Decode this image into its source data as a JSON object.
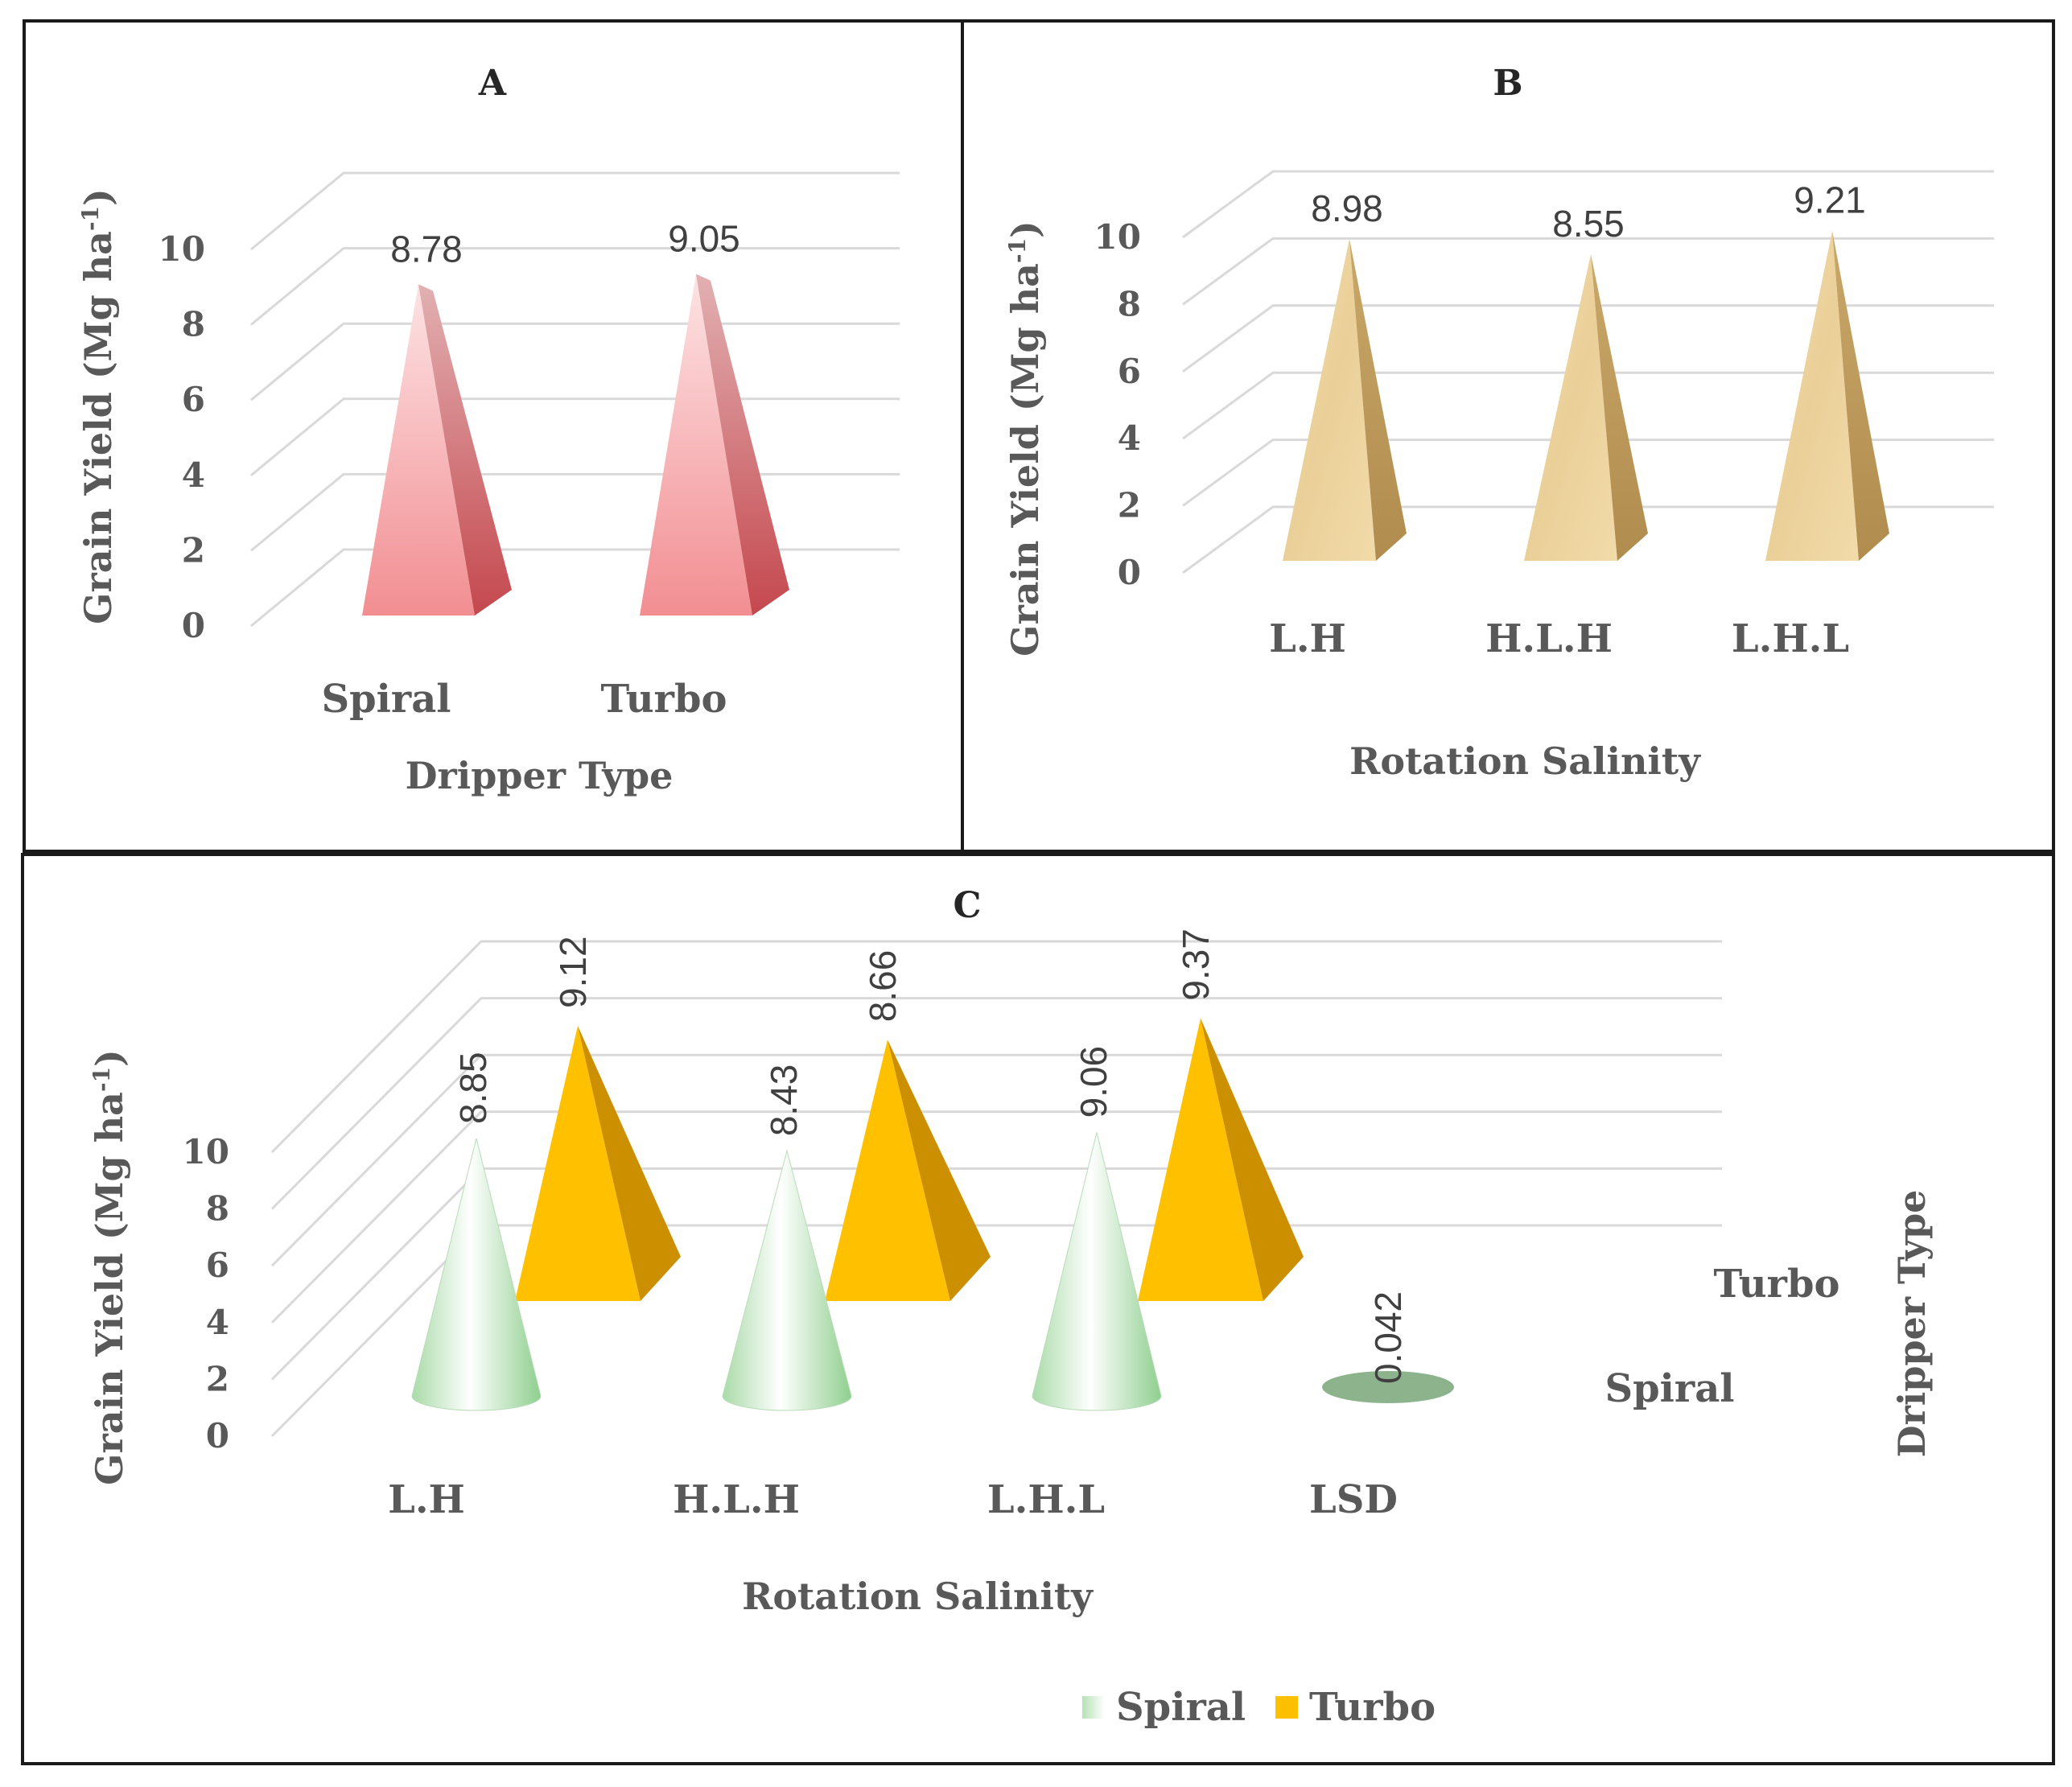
{
  "chart_data": [
    {
      "panel": "A",
      "type": "bar",
      "shape": "pyramid",
      "title": "A",
      "ylabel": "Grain Yield (Mg ha",
      "ylabel_sup": "-1",
      "ylabel_close": ")",
      "xlabel": "Dripper Type",
      "yticks": [
        "0",
        "2",
        "4",
        "6",
        "8",
        "10"
      ],
      "ylim": [
        0,
        10
      ],
      "categories": [
        "Spiral",
        "Turbo"
      ],
      "values": [
        8.78,
        9.05
      ],
      "value_labels": [
        "8.78",
        "9.05"
      ],
      "color": "#f4a0a4"
    },
    {
      "panel": "B",
      "type": "bar",
      "shape": "pyramid",
      "title": "B",
      "ylabel": "Grain Yield (Mg ha",
      "ylabel_sup": "-1",
      "ylabel_close": ")",
      "xlabel": "Rotation Salinity",
      "yticks": [
        "0",
        "2",
        "4",
        "6",
        "8",
        "10"
      ],
      "ylim": [
        0,
        10
      ],
      "categories": [
        "L.H",
        "H.L.H",
        "L.H.L"
      ],
      "values": [
        8.98,
        8.55,
        9.21
      ],
      "value_labels": [
        "8.98",
        "8.55",
        "9.21"
      ],
      "color": "#e9cf96"
    },
    {
      "panel": "C",
      "type": "bar",
      "shape": "3d-cone-pyramid",
      "title": "C",
      "ylabel": "Grain Yield (Mg ha",
      "ylabel_sup": "-1",
      "ylabel_close": ")",
      "xlabel": "Rotation Salinity",
      "depth_axis_label": "Dripper Type",
      "depth_ticks": [
        "Turbo",
        "Spiral"
      ],
      "yticks": [
        "0",
        "2",
        "4",
        "6",
        "8",
        "10"
      ],
      "ylim": [
        0,
        10
      ],
      "categories": [
        "L.H",
        "H.L.H",
        "L.H.L",
        "LSD"
      ],
      "series": [
        {
          "name": "Spiral",
          "values": [
            8.85,
            8.43,
            9.06,
            0.042
          ],
          "value_labels": [
            "8.85",
            "8.43",
            "9.06",
            "0.042"
          ],
          "color": "#c8ecc8"
        },
        {
          "name": "Turbo",
          "values": [
            9.12,
            8.66,
            9.37,
            null
          ],
          "value_labels": [
            "9.12",
            "8.66",
            "9.37",
            ""
          ],
          "color": "#ffc000"
        }
      ],
      "legend": [
        "Spiral",
        "Turbo"
      ]
    }
  ]
}
